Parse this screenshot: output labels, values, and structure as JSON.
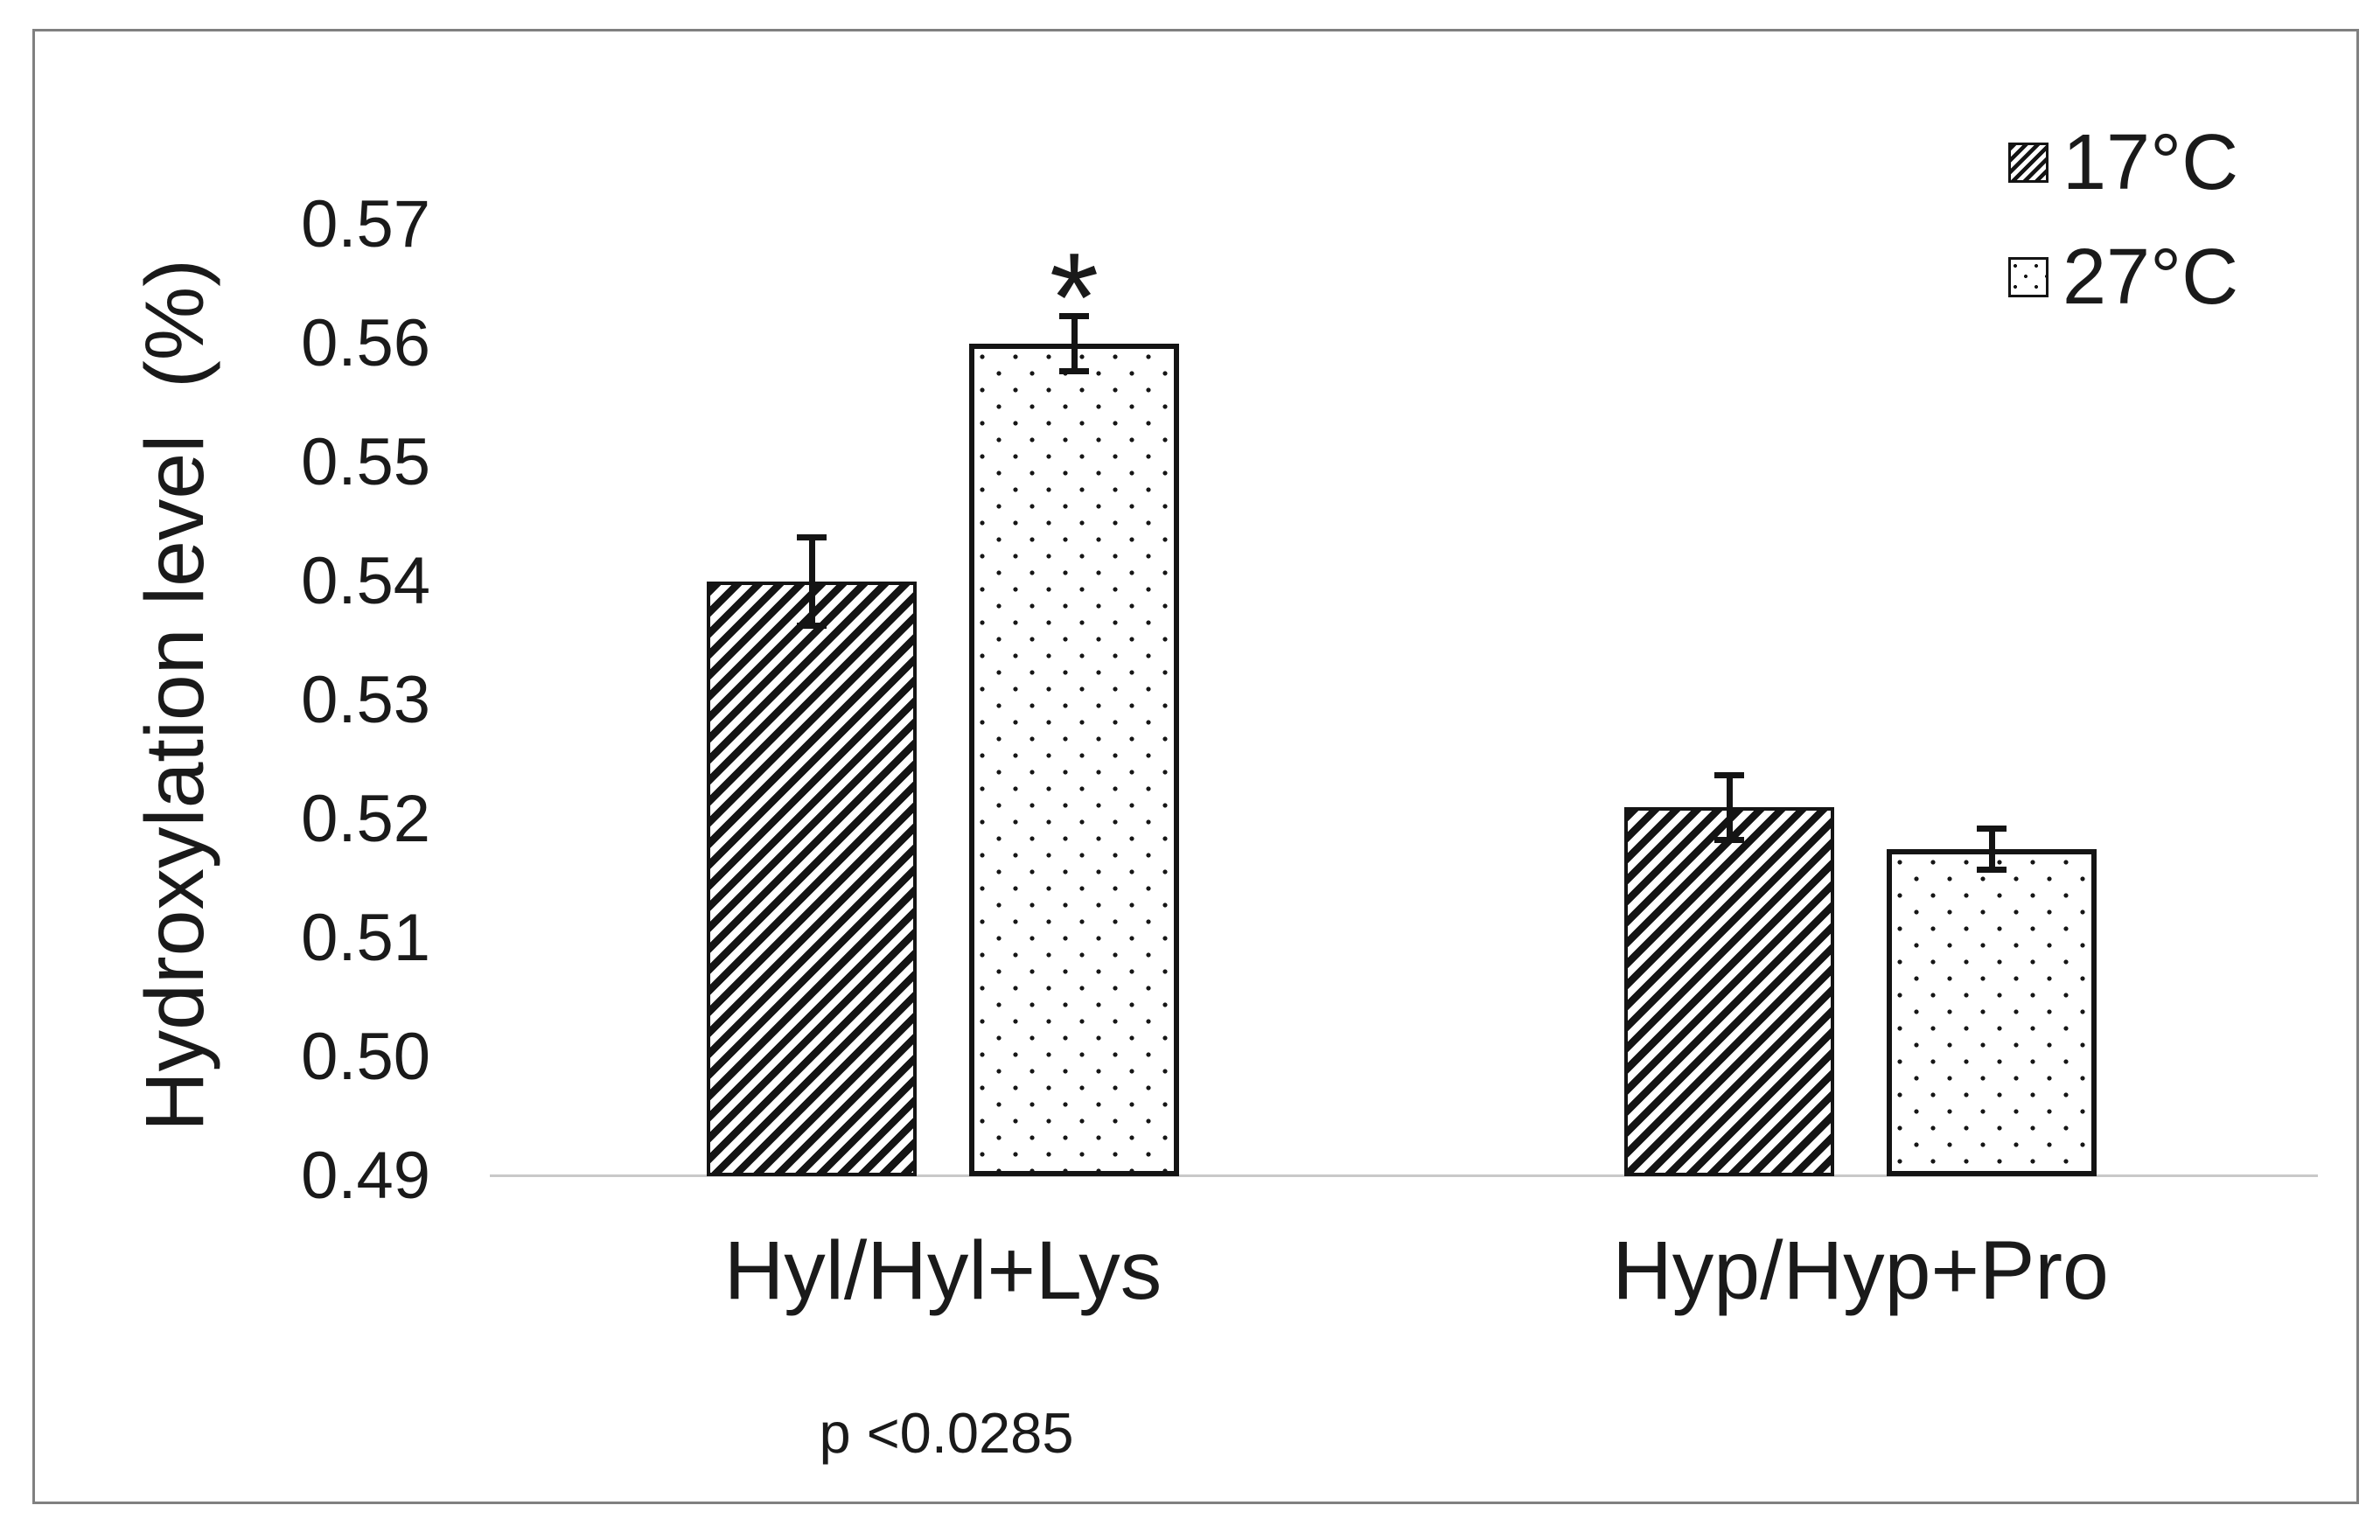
{
  "chart_data": {
    "type": "bar",
    "title": "",
    "categories": [
      "Hyl/Hyl+Lys",
      "Hyp/Hyp+Pro"
    ],
    "series": [
      {
        "name": "17°C",
        "pattern": "hatch",
        "values": [
          0.54,
          0.521
        ],
        "errors": [
          0.004,
          0.003
        ]
      },
      {
        "name": "27°C",
        "pattern": "dots",
        "values": [
          0.56,
          0.5175
        ],
        "errors": [
          0.0026,
          0.002
        ]
      }
    ],
    "ylabel": "Hydroxylation level  (%)",
    "yticks": [
      "0.57",
      "0.56",
      "0.55",
      "0.54",
      "0.53",
      "0.52",
      "0.51",
      "0.50",
      "0.49"
    ],
    "ylim": [
      0.49,
      0.57
    ],
    "grid": false,
    "legend_position": "top-right",
    "annotations": [
      {
        "text": "*",
        "category_index": 0,
        "series_index": 1
      }
    ],
    "note": "p <0.0285"
  },
  "note": {
    "p_value_label": "p <0.0285"
  },
  "colors": {
    "ink": "#141414",
    "axis_line": "#c9c9c9",
    "frame_border": "#808080",
    "background": "#ffffff"
  }
}
